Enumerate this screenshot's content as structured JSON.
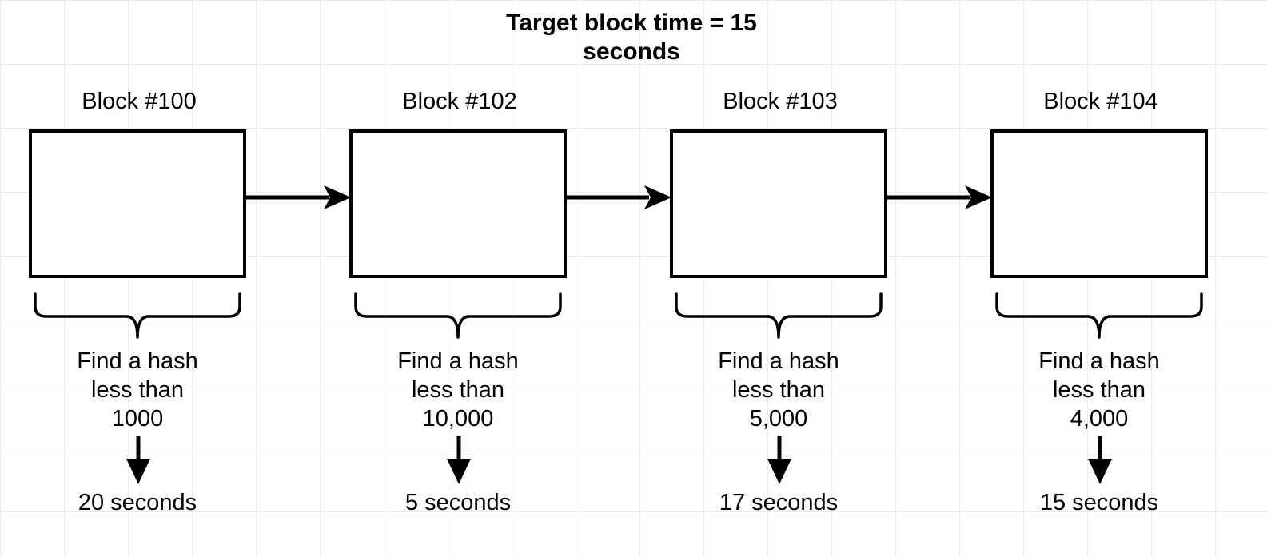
{
  "title": {
    "line1": "Target block time = 15",
    "line2": "seconds"
  },
  "blocks": [
    {
      "label": "Block #100",
      "condition": [
        "Find a hash",
        "less than",
        "1000"
      ],
      "time": "20 seconds"
    },
    {
      "label": "Block #102",
      "condition": [
        "Find a hash",
        "less than",
        "10,000"
      ],
      "time": "5 seconds"
    },
    {
      "label": "Block #103",
      "condition": [
        "Find a hash",
        "less than",
        "5,000"
      ],
      "time": "17 seconds"
    },
    {
      "label": "Block #104",
      "condition": [
        "Find a hash",
        "less than",
        "4,000"
      ],
      "time": "15 seconds"
    }
  ],
  "colors": {
    "stroke": "#000000",
    "background": "#ffffff",
    "grid": "#ececec"
  }
}
